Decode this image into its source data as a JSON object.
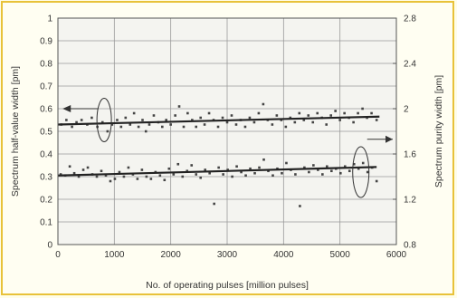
{
  "chart_data": {
    "type": "scatter",
    "xlabel": "No. of operating pulses [million pulses]",
    "ylabel_left": "Spectrum half-value width [pm]",
    "ylabel_right": "Spectrum purity width [pm]",
    "xlim": [
      0,
      6000
    ],
    "ylim_left": [
      0,
      1
    ],
    "ylim_right": [
      0.8,
      2.8
    ],
    "x_ticks": [
      "0",
      "1000",
      "2000",
      "3000",
      "4000",
      "5000",
      "6000"
    ],
    "y_left_ticks": [
      "0",
      "0.1",
      "0.2",
      "0.3",
      "0.4",
      "0.5",
      "0.6",
      "0.7",
      "0.8",
      "0.9",
      "1"
    ],
    "y_right_ticks": [
      "0.8",
      "1.2",
      "1.6",
      "2",
      "2.4",
      "2.8"
    ],
    "grid": true,
    "series": [
      {
        "axis": "left",
        "trend": [
          [
            0,
            0.53
          ],
          [
            5700,
            0.565
          ]
        ],
        "points": [
          [
            60,
            0.53
          ],
          [
            150,
            0.55
          ],
          [
            250,
            0.52
          ],
          [
            330,
            0.54
          ],
          [
            420,
            0.55
          ],
          [
            520,
            0.53
          ],
          [
            600,
            0.56
          ],
          [
            700,
            0.52
          ],
          [
            790,
            0.54
          ],
          [
            880,
            0.5
          ],
          [
            960,
            0.53
          ],
          [
            1050,
            0.55
          ],
          [
            1120,
            0.52
          ],
          [
            1200,
            0.56
          ],
          [
            1280,
            0.53
          ],
          [
            1350,
            0.58
          ],
          [
            1430,
            0.52
          ],
          [
            1500,
            0.55
          ],
          [
            1560,
            0.5
          ],
          [
            1620,
            0.53
          ],
          [
            1700,
            0.57
          ],
          [
            1780,
            0.54
          ],
          [
            1850,
            0.52
          ],
          [
            1920,
            0.55
          ],
          [
            2000,
            0.53
          ],
          [
            2080,
            0.57
          ],
          [
            2150,
            0.61
          ],
          [
            2230,
            0.52
          ],
          [
            2300,
            0.58
          ],
          [
            2380,
            0.55
          ],
          [
            2450,
            0.52
          ],
          [
            2530,
            0.56
          ],
          [
            2600,
            0.53
          ],
          [
            2680,
            0.58
          ],
          [
            2760,
            0.55
          ],
          [
            2840,
            0.52
          ],
          [
            2920,
            0.56
          ],
          [
            3000,
            0.54
          ],
          [
            3080,
            0.57
          ],
          [
            3160,
            0.53
          ],
          [
            3240,
            0.55
          ],
          [
            3320,
            0.52
          ],
          [
            3400,
            0.56
          ],
          [
            3480,
            0.54
          ],
          [
            3560,
            0.58
          ],
          [
            3640,
            0.62
          ],
          [
            3720,
            0.55
          ],
          [
            3800,
            0.53
          ],
          [
            3880,
            0.57
          ],
          [
            3960,
            0.55
          ],
          [
            4040,
            0.52
          ],
          [
            4120,
            0.56
          ],
          [
            4200,
            0.54
          ],
          [
            4280,
            0.58
          ],
          [
            4360,
            0.55
          ],
          [
            4440,
            0.57
          ],
          [
            4520,
            0.54
          ],
          [
            4600,
            0.58
          ],
          [
            4680,
            0.56
          ],
          [
            4760,
            0.53
          ],
          [
            4840,
            0.57
          ],
          [
            4920,
            0.59
          ],
          [
            5000,
            0.55
          ],
          [
            5080,
            0.58
          ],
          [
            5160,
            0.56
          ],
          [
            5240,
            0.54
          ],
          [
            5320,
            0.58
          ],
          [
            5400,
            0.6
          ],
          [
            5480,
            0.56
          ],
          [
            5560,
            0.58
          ],
          [
            5650,
            0.55
          ]
        ]
      },
      {
        "axis": "right",
        "trend": [
          [
            0,
            1.41
          ],
          [
            5650,
            1.485
          ]
        ],
        "points": [
          [
            50,
            1.42
          ],
          [
            130,
            1.41
          ],
          [
            210,
            1.49
          ],
          [
            290,
            1.43
          ],
          [
            370,
            1.4
          ],
          [
            450,
            1.46
          ],
          [
            530,
            1.48
          ],
          [
            610,
            1.42
          ],
          [
            690,
            1.4
          ],
          [
            770,
            1.45
          ],
          [
            850,
            1.41
          ],
          [
            930,
            1.36
          ],
          [
            1010,
            1.38
          ],
          [
            1090,
            1.44
          ],
          [
            1170,
            1.4
          ],
          [
            1250,
            1.48
          ],
          [
            1330,
            1.42
          ],
          [
            1410,
            1.38
          ],
          [
            1490,
            1.46
          ],
          [
            1570,
            1.4
          ],
          [
            1650,
            1.38
          ],
          [
            1730,
            1.44
          ],
          [
            1810,
            1.41
          ],
          [
            1890,
            1.37
          ],
          [
            1970,
            1.47
          ],
          [
            2050,
            1.42
          ],
          [
            2130,
            1.51
          ],
          [
            2210,
            1.4
          ],
          [
            2290,
            1.45
          ],
          [
            2370,
            1.5
          ],
          [
            2450,
            1.42
          ],
          [
            2530,
            1.39
          ],
          [
            2610,
            1.46
          ],
          [
            2690,
            1.43
          ],
          [
            2770,
            1.16
          ],
          [
            2850,
            1.48
          ],
          [
            2930,
            1.42
          ],
          [
            3010,
            1.46
          ],
          [
            3090,
            1.4
          ],
          [
            3170,
            1.49
          ],
          [
            3250,
            1.44
          ],
          [
            3330,
            1.41
          ],
          [
            3410,
            1.47
          ],
          [
            3490,
            1.43
          ],
          [
            3570,
            1.48
          ],
          [
            3650,
            1.55
          ],
          [
            3730,
            1.45
          ],
          [
            3810,
            1.41
          ],
          [
            3890,
            1.47
          ],
          [
            3970,
            1.43
          ],
          [
            4050,
            1.52
          ],
          [
            4130,
            1.46
          ],
          [
            4210,
            1.42
          ],
          [
            4290,
            1.14
          ],
          [
            4370,
            1.48
          ],
          [
            4450,
            1.44
          ],
          [
            4530,
            1.5
          ],
          [
            4610,
            1.46
          ],
          [
            4690,
            1.42
          ],
          [
            4770,
            1.49
          ],
          [
            4850,
            1.45
          ],
          [
            4930,
            1.47
          ],
          [
            5010,
            1.43
          ],
          [
            5090,
            1.49
          ],
          [
            5170,
            1.45
          ],
          [
            5250,
            1.51
          ],
          [
            5330,
            1.47
          ],
          [
            5410,
            1.52
          ],
          [
            5490,
            1.44
          ],
          [
            5570,
            1.48
          ],
          [
            5650,
            1.36
          ]
        ]
      }
    ]
  }
}
